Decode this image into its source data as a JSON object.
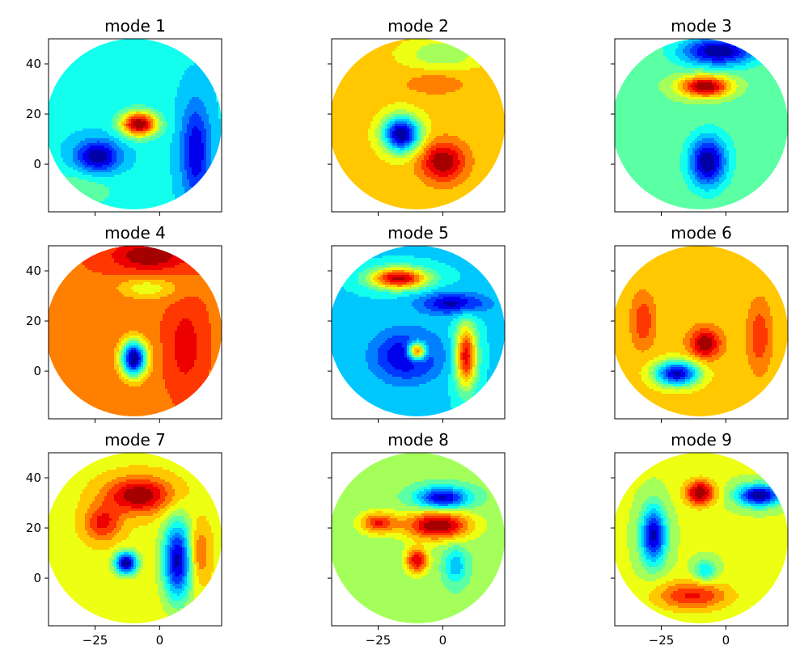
{
  "chart_data": {
    "type": "heatmap",
    "layout": "3x3 subplots, shared x and y axes",
    "colormap": "jet",
    "grid": false,
    "shape": "circular domain",
    "xlim": [
      -43,
      24
    ],
    "ylim": [
      -19,
      50
    ],
    "x_ticks": [
      -25,
      0
    ],
    "x_tick_labels": [
      "−25",
      "0"
    ],
    "y_ticks": [
      0,
      20,
      40
    ],
    "y_tick_labels": [
      "0",
      "20",
      "40"
    ],
    "domain_center": [
      -10,
      16
    ],
    "domain_radius": 34,
    "panels": [
      {
        "title": "mode 1",
        "background": 0.37,
        "features": [
          {
            "x": -8,
            "y": 16,
            "v": 1.0,
            "sx": 5,
            "sy": 3.5
          },
          {
            "x": -24,
            "y": 3,
            "v": 0.0,
            "sx": 6,
            "sy": 4.5
          },
          {
            "x": 14,
            "y": 5,
            "v": 0.08,
            "sx": 4,
            "sy": 14
          },
          {
            "x": -32,
            "y": -10,
            "v": 0.48,
            "sx": 12,
            "sy": 6
          }
        ]
      },
      {
        "title": "mode 2",
        "background": 0.67,
        "features": [
          {
            "x": -16,
            "y": 12,
            "v": 0.0,
            "sx": 5,
            "sy": 5
          },
          {
            "x": 0,
            "y": 1,
            "v": 1.0,
            "sx": 6,
            "sy": 5.5
          },
          {
            "x": 0,
            "y": 44,
            "v": 0.5,
            "sx": 10,
            "sy": 4
          },
          {
            "x": -3,
            "y": 32,
            "v": 0.78,
            "sx": 8,
            "sy": 3
          }
        ]
      },
      {
        "title": "mode 3",
        "background": 0.48,
        "features": [
          {
            "x": -3,
            "y": 45,
            "v": 0.0,
            "sx": 10,
            "sy": 4
          },
          {
            "x": -8,
            "y": 31,
            "v": 1.0,
            "sx": 7,
            "sy": 3
          },
          {
            "x": -7,
            "y": 1,
            "v": 0.0,
            "sx": 5,
            "sy": 7
          },
          {
            "x": 8,
            "y": 18,
            "v": 0.45,
            "sx": 6,
            "sy": 10
          }
        ]
      },
      {
        "title": "mode 4",
        "background": 0.78,
        "features": [
          {
            "x": -4,
            "y": 46,
            "v": 1.0,
            "sx": 10,
            "sy": 4
          },
          {
            "x": -10,
            "y": 5,
            "v": 0.0,
            "sx": 3.5,
            "sy": 5
          },
          {
            "x": -5,
            "y": 33,
            "v": 0.6,
            "sx": 8,
            "sy": 3
          },
          {
            "x": 10,
            "y": 10,
            "v": 0.92,
            "sx": 4,
            "sy": 10
          }
        ]
      },
      {
        "title": "mode 5",
        "background": 0.35,
        "features": [
          {
            "x": -10,
            "y": 8,
            "v": 1.0,
            "sx": 2.5,
            "sy": 2.5
          },
          {
            "x": -14,
            "y": 6,
            "v": 0.05,
            "sx": 9,
            "sy": 7
          },
          {
            "x": -17,
            "y": 37,
            "v": 0.95,
            "sx": 8,
            "sy": 3
          },
          {
            "x": 4,
            "y": 27,
            "v": 0.05,
            "sx": 9,
            "sy": 3
          },
          {
            "x": 9,
            "y": 6,
            "v": 0.9,
            "sx": 3,
            "sy": 9
          }
        ]
      },
      {
        "title": "mode 6",
        "background": 0.68,
        "features": [
          {
            "x": -8,
            "y": 11,
            "v": 1.0,
            "sx": 4,
            "sy": 4
          },
          {
            "x": -19,
            "y": -1,
            "v": 0.05,
            "sx": 6,
            "sy": 3.5
          },
          {
            "x": 13,
            "y": 14,
            "v": 0.85,
            "sx": 3,
            "sy": 9
          },
          {
            "x": -32,
            "y": 20,
            "v": 0.85,
            "sx": 3,
            "sy": 7
          }
        ]
      },
      {
        "title": "mode 7",
        "background": 0.62,
        "features": [
          {
            "x": -13,
            "y": 6,
            "v": 0.0,
            "sx": 3,
            "sy": 3
          },
          {
            "x": -8,
            "y": 33,
            "v": 1.0,
            "sx": 9,
            "sy": 5
          },
          {
            "x": 7,
            "y": 7,
            "v": 0.05,
            "sx": 4,
            "sy": 11
          },
          {
            "x": -22,
            "y": 22,
            "v": 0.88,
            "sx": 5,
            "sy": 5
          },
          {
            "x": 15,
            "y": 10,
            "v": 0.82,
            "sx": 3,
            "sy": 8
          }
        ]
      },
      {
        "title": "mode 8",
        "background": 0.52,
        "features": [
          {
            "x": 0,
            "y": 32,
            "v": 0.05,
            "sx": 7,
            "sy": 3
          },
          {
            "x": -2,
            "y": 21,
            "v": 1.0,
            "sx": 9,
            "sy": 4
          },
          {
            "x": -10,
            "y": 7,
            "v": 0.92,
            "sx": 3,
            "sy": 3.5
          },
          {
            "x": -25,
            "y": 22,
            "v": 0.85,
            "sx": 5,
            "sy": 3
          },
          {
            "x": 5,
            "y": 5,
            "v": 0.3,
            "sx": 3,
            "sy": 5
          }
        ]
      },
      {
        "title": "mode 9",
        "background": 0.58,
        "features": [
          {
            "x": -10,
            "y": 34,
            "v": 1.0,
            "sx": 4,
            "sy": 3.5
          },
          {
            "x": 13,
            "y": 33,
            "v": 0.0,
            "sx": 6,
            "sy": 3
          },
          {
            "x": -28,
            "y": 17,
            "v": 0.05,
            "sx": 3.5,
            "sy": 8
          },
          {
            "x": -13,
            "y": -7,
            "v": 0.87,
            "sx": 10,
            "sy": 4
          },
          {
            "x": -8,
            "y": 3,
            "v": 0.35,
            "sx": 3,
            "sy": 3
          }
        ]
      }
    ]
  }
}
